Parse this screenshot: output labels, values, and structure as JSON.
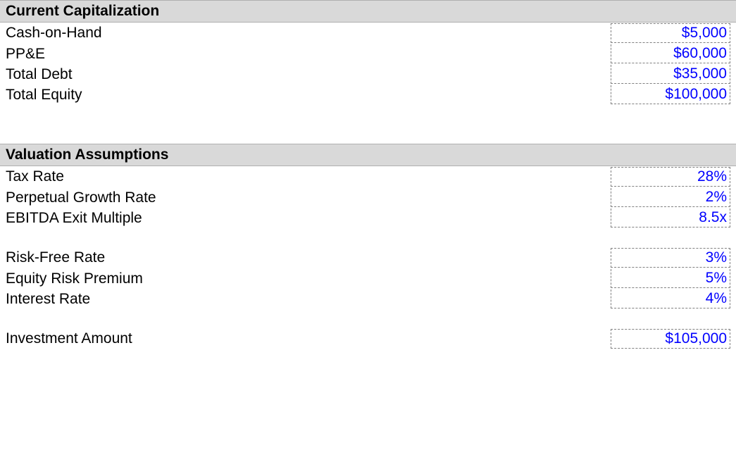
{
  "sections": {
    "capitalization": {
      "title": "Current Capitalization",
      "rows": [
        {
          "label": "Cash-on-Hand",
          "value": "$5,000"
        },
        {
          "label": "PP&E",
          "value": "$60,000"
        },
        {
          "label": "Total Debt",
          "value": "$35,000"
        },
        {
          "label": "Total Equity",
          "value": "$100,000"
        }
      ]
    },
    "valuation": {
      "title": "Valuation Assumptions",
      "group1": [
        {
          "label": "Tax Rate",
          "value": "28%"
        },
        {
          "label": "Perpetual Growth Rate",
          "value": "2%"
        },
        {
          "label": "EBITDA Exit Multiple",
          "value": "8.5x"
        }
      ],
      "group2": [
        {
          "label": "Risk-Free Rate",
          "value": "3%"
        },
        {
          "label": "Equity Risk Premium",
          "value": "5%"
        },
        {
          "label": "Interest Rate",
          "value": "4%"
        }
      ],
      "group3": [
        {
          "label": "Investment Amount",
          "value": "$105,000"
        }
      ]
    }
  },
  "styling": {
    "header_bg": "#d9d9d9",
    "header_border": "#b0b0b0",
    "value_color": "#0000ff",
    "label_color": "#000000",
    "value_border": "#808080",
    "font_size": 21,
    "value_cell_width": 170
  }
}
